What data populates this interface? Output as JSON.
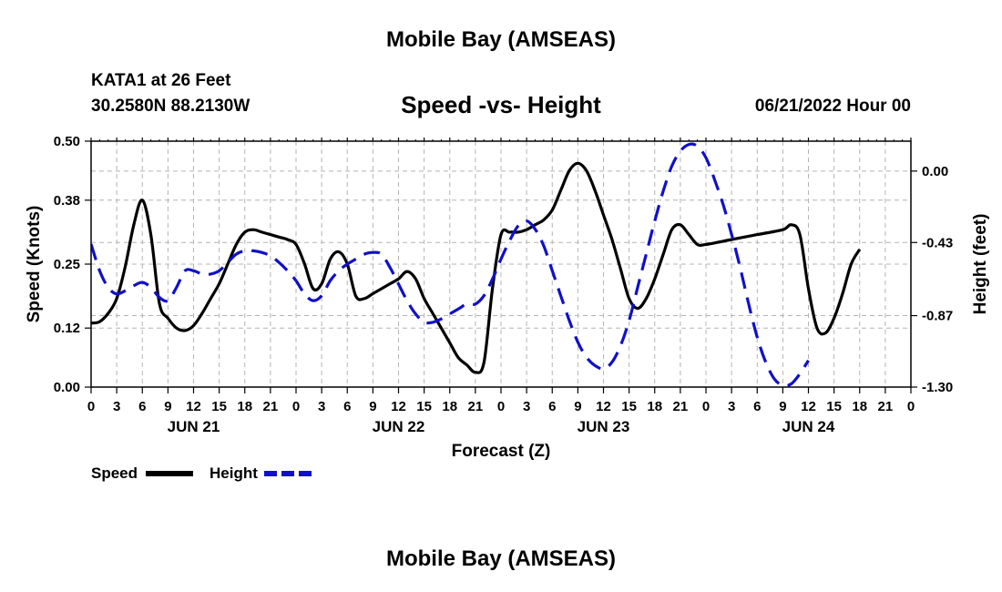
{
  "header": {
    "title": "Mobile Bay (AMSEAS)",
    "station": "KATA1 at 26 Feet",
    "coords": "30.2580N  88.2130W",
    "chart_title": "Speed -vs- Height",
    "run_time": "06/21/2022 Hour 00"
  },
  "footer": {
    "title": "Mobile Bay (AMSEAS)"
  },
  "colors": {
    "speed": "#000000",
    "height": "#1010c8",
    "grid": "#b4b4b4"
  },
  "chart_data": {
    "type": "line",
    "title": "Speed -vs- Height",
    "xlabel": "Forecast (Z)",
    "ylabel": "Speed (Knots)",
    "y2label": "Height (feet)",
    "x_ticks": [
      "0",
      "3",
      "6",
      "9",
      "12",
      "15",
      "18",
      "21",
      "0",
      "3",
      "6",
      "9",
      "12",
      "15",
      "18",
      "21",
      "0",
      "3",
      "6",
      "9",
      "12",
      "15",
      "18",
      "21",
      "0",
      "3",
      "6",
      "9",
      "12",
      "15",
      "18",
      "21",
      "0"
    ],
    "x_tick_hours": [
      0,
      3,
      6,
      9,
      12,
      15,
      18,
      21,
      24,
      27,
      30,
      33,
      36,
      39,
      42,
      45,
      48,
      51,
      54,
      57,
      60,
      63,
      66,
      69,
      72,
      75,
      78,
      81,
      84,
      87,
      90,
      93,
      96
    ],
    "day_labels": [
      {
        "label": "JUN 21",
        "hour": 12
      },
      {
        "label": "JUN 22",
        "hour": 36
      },
      {
        "label": "JUN 23",
        "hour": 60
      },
      {
        "label": "JUN 24",
        "hour": 84
      }
    ],
    "x_range": [
      0,
      96
    ],
    "ylim": [
      0,
      0.5
    ],
    "y_ticks": [
      "0.00",
      "0.12",
      "0.25",
      "0.38",
      "0.50"
    ],
    "y2lim": [
      -1.3,
      0.18
    ],
    "y2_ticks": [
      "0.00",
      "-0.43",
      "-0.87",
      "-1.30"
    ],
    "grid": true,
    "legend_position": "bottom-left",
    "series": [
      {
        "name": "Speed",
        "axis": "left",
        "style": "solid",
        "points": [
          [
            0,
            0.13
          ],
          [
            1,
            0.133
          ],
          [
            2,
            0.15
          ],
          [
            3,
            0.18
          ],
          [
            4,
            0.245
          ],
          [
            5,
            0.33
          ],
          [
            6,
            0.38
          ],
          [
            7,
            0.31
          ],
          [
            8,
            0.17
          ],
          [
            9,
            0.14
          ],
          [
            10,
            0.12
          ],
          [
            11,
            0.115
          ],
          [
            12,
            0.125
          ],
          [
            13,
            0.15
          ],
          [
            14,
            0.18
          ],
          [
            15,
            0.21
          ],
          [
            16,
            0.25
          ],
          [
            17,
            0.29
          ],
          [
            18,
            0.315
          ],
          [
            19,
            0.32
          ],
          [
            20,
            0.315
          ],
          [
            21,
            0.31
          ],
          [
            22,
            0.305
          ],
          [
            23,
            0.3
          ],
          [
            24,
            0.29
          ],
          [
            25,
            0.25
          ],
          [
            26,
            0.2
          ],
          [
            27,
            0.21
          ],
          [
            28,
            0.26
          ],
          [
            29,
            0.275
          ],
          [
            30,
            0.25
          ],
          [
            31,
            0.185
          ],
          [
            32,
            0.18
          ],
          [
            33,
            0.19
          ],
          [
            34,
            0.2
          ],
          [
            35,
            0.21
          ],
          [
            36,
            0.22
          ],
          [
            37,
            0.235
          ],
          [
            38,
            0.22
          ],
          [
            39,
            0.18
          ],
          [
            40,
            0.15
          ],
          [
            41,
            0.12
          ],
          [
            42,
            0.09
          ],
          [
            43,
            0.06
          ],
          [
            44,
            0.045
          ],
          [
            45,
            0.03
          ],
          [
            46,
            0.05
          ],
          [
            47,
            0.2
          ],
          [
            48,
            0.31
          ],
          [
            49,
            0.315
          ],
          [
            50,
            0.315
          ],
          [
            51,
            0.32
          ],
          [
            52,
            0.33
          ],
          [
            53,
            0.34
          ],
          [
            54,
            0.36
          ],
          [
            55,
            0.4
          ],
          [
            56,
            0.44
          ],
          [
            57,
            0.455
          ],
          [
            58,
            0.44
          ],
          [
            59,
            0.4
          ],
          [
            60,
            0.35
          ],
          [
            61,
            0.3
          ],
          [
            62,
            0.24
          ],
          [
            63,
            0.18
          ],
          [
            64,
            0.16
          ],
          [
            65,
            0.18
          ],
          [
            66,
            0.22
          ],
          [
            67,
            0.27
          ],
          [
            68,
            0.32
          ],
          [
            69,
            0.33
          ],
          [
            70,
            0.31
          ],
          [
            71,
            0.29
          ],
          [
            72,
            0.29
          ],
          [
            75,
            0.3
          ],
          [
            78,
            0.31
          ],
          [
            81,
            0.32
          ],
          [
            82,
            0.33
          ],
          [
            83,
            0.31
          ],
          [
            84,
            0.2
          ],
          [
            85,
            0.12
          ],
          [
            86,
            0.11
          ],
          [
            87,
            0.14
          ],
          [
            88,
            0.19
          ],
          [
            89,
            0.25
          ],
          [
            90,
            0.28
          ]
        ]
      },
      {
        "name": "Height",
        "axis": "right",
        "style": "dashed",
        "points": [
          [
            0,
            -0.44
          ],
          [
            1,
            -0.6
          ],
          [
            2,
            -0.7
          ],
          [
            3,
            -0.74
          ],
          [
            4,
            -0.72
          ],
          [
            5,
            -0.69
          ],
          [
            6,
            -0.67
          ],
          [
            7,
            -0.7
          ],
          [
            8,
            -0.76
          ],
          [
            9,
            -0.78
          ],
          [
            10,
            -0.7
          ],
          [
            11,
            -0.6
          ],
          [
            12,
            -0.6
          ],
          [
            13,
            -0.62
          ],
          [
            14,
            -0.62
          ],
          [
            15,
            -0.6
          ],
          [
            16,
            -0.55
          ],
          [
            17,
            -0.5
          ],
          [
            18,
            -0.48
          ],
          [
            19,
            -0.48
          ],
          [
            20,
            -0.49
          ],
          [
            21,
            -0.51
          ],
          [
            22,
            -0.55
          ],
          [
            23,
            -0.6
          ],
          [
            24,
            -0.66
          ],
          [
            25,
            -0.74
          ],
          [
            26,
            -0.78
          ],
          [
            27,
            -0.75
          ],
          [
            28,
            -0.66
          ],
          [
            29,
            -0.6
          ],
          [
            30,
            -0.56
          ],
          [
            31,
            -0.53
          ],
          [
            32,
            -0.5
          ],
          [
            33,
            -0.49
          ],
          [
            34,
            -0.5
          ],
          [
            35,
            -0.58
          ],
          [
            36,
            -0.68
          ],
          [
            37,
            -0.78
          ],
          [
            38,
            -0.86
          ],
          [
            39,
            -0.91
          ],
          [
            40,
            -0.91
          ],
          [
            41,
            -0.89
          ],
          [
            42,
            -0.86
          ],
          [
            43,
            -0.83
          ],
          [
            44,
            -0.8
          ],
          [
            45,
            -0.8
          ],
          [
            46,
            -0.75
          ],
          [
            47,
            -0.65
          ],
          [
            48,
            -0.53
          ],
          [
            49,
            -0.42
          ],
          [
            50,
            -0.33
          ],
          [
            51,
            -0.3
          ],
          [
            52,
            -0.35
          ],
          [
            53,
            -0.45
          ],
          [
            54,
            -0.6
          ],
          [
            55,
            -0.75
          ],
          [
            56,
            -0.9
          ],
          [
            57,
            -1.03
          ],
          [
            58,
            -1.12
          ],
          [
            59,
            -1.17
          ],
          [
            60,
            -1.19
          ],
          [
            61,
            -1.15
          ],
          [
            62,
            -1.05
          ],
          [
            63,
            -0.9
          ],
          [
            64,
            -0.7
          ],
          [
            65,
            -0.5
          ],
          [
            66,
            -0.3
          ],
          [
            67,
            -0.12
          ],
          [
            68,
            0.03
          ],
          [
            69,
            0.12
          ],
          [
            70,
            0.16
          ],
          [
            71,
            0.15
          ],
          [
            72,
            0.08
          ],
          [
            73,
            -0.05
          ],
          [
            74,
            -0.2
          ],
          [
            75,
            -0.38
          ],
          [
            76,
            -0.58
          ],
          [
            77,
            -0.8
          ],
          [
            78,
            -1.0
          ],
          [
            79,
            -1.15
          ],
          [
            80,
            -1.25
          ],
          [
            81,
            -1.29
          ],
          [
            82,
            -1.28
          ],
          [
            83,
            -1.22
          ],
          [
            84,
            -1.14
          ]
        ]
      }
    ]
  }
}
